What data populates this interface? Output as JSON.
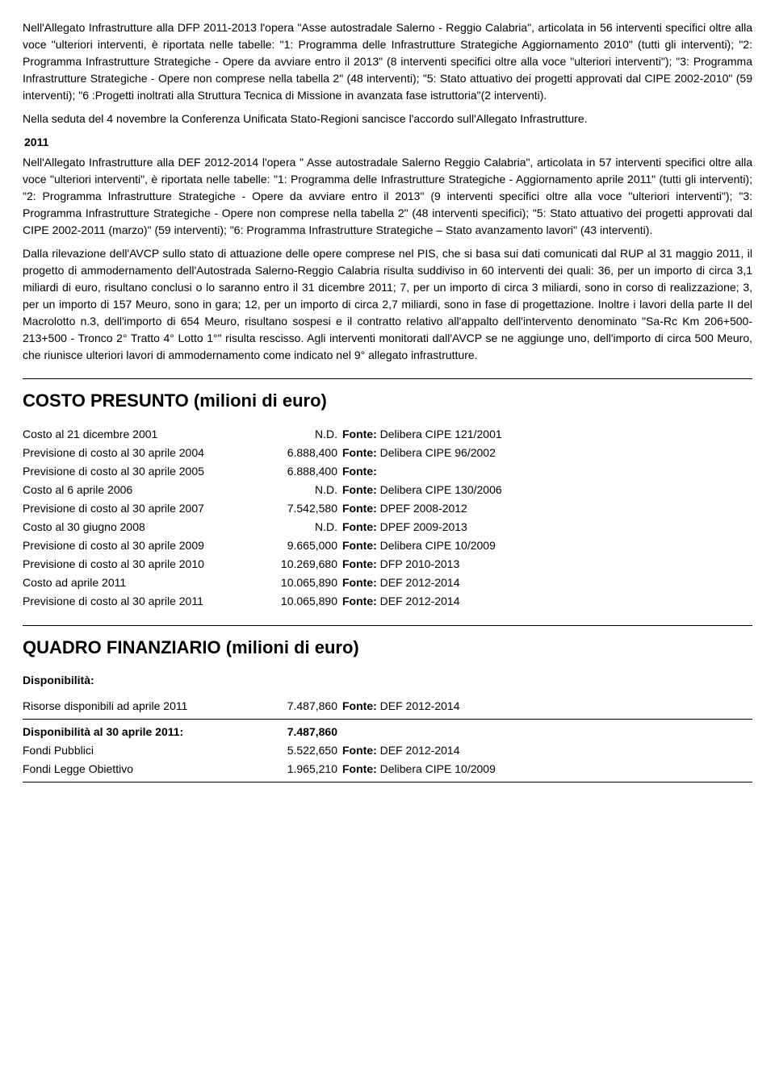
{
  "para1": "Nell'Allegato Infrastrutture alla DFP 2011-2013 l'opera \"Asse autostradale Salerno - Reggio Calabria\", articolata in 56 interventi specifici oltre alla voce \"ulteriori interventi, è riportata nelle tabelle: \"1: Programma delle Infrastrutture Strategiche Aggiornamento 2010\" (tutti gli interventi); \"2: Programma Infrastrutture Strategiche - Opere da avviare entro il 2013\" (8 interventi specifici oltre alla voce \"ulteriori interventi\"); \"3: Programma Infrastrutture Strategiche - Opere non comprese nella tabella 2\" (48 interventi); \"5: Stato attuativo dei progetti approvati dal CIPE 2002-2010\" (59 interventi); \"6 :Progetti inoltrati alla Struttura Tecnica di Missione in avanzata fase istruttoria\"(2 interventi).",
  "para2": "Nella seduta del 4 novembre la Conferenza Unificata Stato-Regioni sancisce l'accordo sull'Allegato Infrastrutture.",
  "year_label": "2011",
  "para3": "Nell'Allegato Infrastrutture alla DEF 2012-2014 l'opera \" Asse autostradale Salerno Reggio Calabria\", articolata in 57 interventi specifici oltre alla voce \"ulteriori interventi\", è riportata nelle tabelle: \"1: Programma delle Infrastrutture Strategiche - Aggiornamento aprile 2011\" (tutti gli interventi); \"2: Programma Infrastrutture Strategiche - Opere da avviare entro il 2013\" (9 interventi specifici oltre alla voce \"ulteriori interventi\"); \"3: Programma Infrastrutture Strategiche - Opere non comprese nella tabella 2\" (48 interventi specifici); \"5: Stato attuativo dei progetti approvati dal CIPE 2002-2011 (marzo)\" (59 interventi); \"6: Programma Infrastrutture Strategiche – Stato avanzamento lavori\" (43 interventi).",
  "para4": "Dalla rilevazione dell'AVCP sullo stato di attuazione delle opere comprese nel PIS, che si basa sui dati comunicati dal RUP al 31 maggio 2011, il progetto di ammodernamento dell'Autostrada Salerno-Reggio Calabria risulta suddiviso in 60 interventi dei quali: 36, per un importo di circa 3,1 miliardi di euro, risultano conclusi o lo saranno entro il 31 dicembre 2011; 7, per un importo di circa 3 miliardi, sono in corso di realizzazione; 3, per un importo di 157 Meuro, sono in gara; 12, per un importo di circa 2,7 miliardi, sono in fase di progettazione. Inoltre i lavori della parte II del Macrolotto n.3, dell'importo di 654 Meuro, risultano sospesi e il contratto relativo all'appalto dell'intervento denominato \"Sa-Rc Km 206+500-213+500 - Tronco 2° Tratto 4° Lotto 1°\" risulta rescisso. Agli interventi monitorati dall'AVCP se ne aggiunge uno, dell'importo di circa 500 Meuro, che riunisce ulteriori lavori di ammodernamento come indicato nel 9° allegato infrastrutture.",
  "heading_costo": "COSTO PRESUNTO (milioni di euro)",
  "fonte_label": "Fonte:",
  "cost_rows": [
    {
      "label": "Costo al 21 dicembre 2001",
      "value": "N.D.",
      "source": "Delibera CIPE 121/2001"
    },
    {
      "label": "Previsione di costo al 30 aprile 2004",
      "value": "6.888,400",
      "source": "Delibera CIPE 96/2002"
    },
    {
      "label": "Previsione di costo al 30 aprile 2005",
      "value": "6.888,400",
      "source": ""
    },
    {
      "label": "Costo al 6 aprile 2006",
      "value": "N.D.",
      "source": "Delibera CIPE 130/2006"
    },
    {
      "label": "Previsione di costo al 30 aprile 2007",
      "value": "7.542,580",
      "source": "DPEF 2008-2012"
    },
    {
      "label": "Costo al 30 giugno 2008",
      "value": "N.D.",
      "source": "DPEF 2009-2013"
    },
    {
      "label": "Previsione di costo al 30 aprile 2009",
      "value": "9.665,000",
      "source": "Delibera CIPE 10/2009"
    },
    {
      "label": "Previsione di costo al 30 aprile 2010",
      "value": "10.269,680",
      "source": "DFP 2010-2013"
    },
    {
      "label": "Costo ad aprile 2011",
      "value": "10.065,890",
      "source": "DEF 2012-2014"
    },
    {
      "label": "Previsione di costo al 30 aprile 2011",
      "value": "10.065,890",
      "source": "DEF 2012-2014"
    }
  ],
  "heading_quadro": "QUADRO FINANZIARIO (milioni di euro)",
  "disponibilita_label": "Disponibilità:",
  "quadro_row1": {
    "label": "Risorse disponibili ad aprile 2011",
    "value": "7.487,860",
    "source": "DEF 2012-2014"
  },
  "quadro_total": {
    "label": "Disponibilità al 30 aprile 2011:",
    "value": "7.487,860"
  },
  "quadro_row2": {
    "label": "Fondi Pubblici",
    "value": "5.522,650",
    "source": "DEF 2012-2014"
  },
  "quadro_row3": {
    "label": "Fondi Legge Obiettivo",
    "value": "1.965,210",
    "source": "Delibera CIPE 10/2009"
  }
}
